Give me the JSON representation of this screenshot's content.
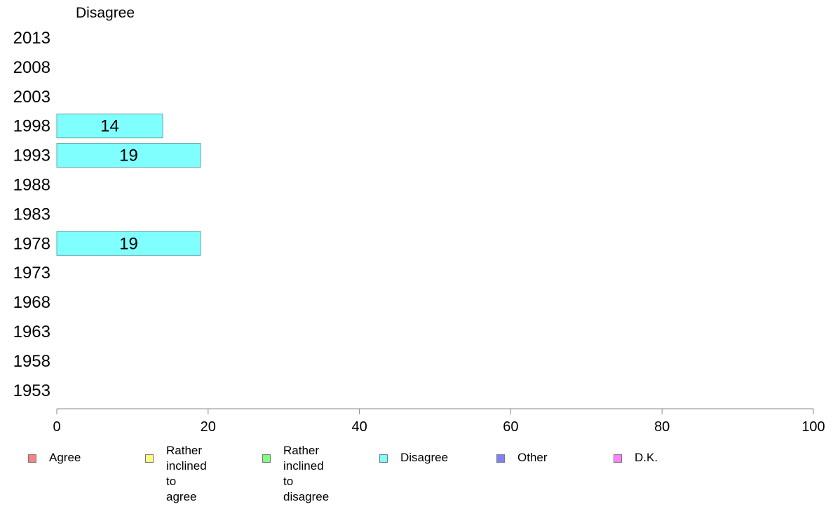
{
  "chart_data": {
    "type": "bar",
    "orientation": "horizontal",
    "title": "Disagree",
    "categories": [
      "2013",
      "2008",
      "2003",
      "1998",
      "1993",
      "1988",
      "1983",
      "1978",
      "1973",
      "1968",
      "1963",
      "1958",
      "1953"
    ],
    "series": [
      {
        "name": "Disagree",
        "color": "#80ffff",
        "values": [
          null,
          null,
          null,
          14,
          19,
          null,
          null,
          19,
          null,
          null,
          null,
          null,
          null
        ],
        "labels": [
          "",
          "",
          "",
          "14",
          "19",
          "",
          "",
          "19",
          "",
          "",
          "",
          "",
          ""
        ]
      }
    ],
    "xlim": [
      0,
      100
    ],
    "xticks": [
      "0",
      "20",
      "40",
      "60",
      "80",
      "100"
    ],
    "grid": false,
    "legend_position": "bottom"
  },
  "legend": [
    {
      "label": "Agree",
      "color": "#ff8080"
    },
    {
      "label": "Rather inclined\nto agree",
      "color": "#ffff80"
    },
    {
      "label": "Rather inclined\nto disagree",
      "color": "#80ff80"
    },
    {
      "label": "Disagree",
      "color": "#80ffff"
    },
    {
      "label": "Other",
      "color": "#8080ff"
    },
    {
      "label": "D.K.",
      "color": "#ff80ff"
    }
  ]
}
